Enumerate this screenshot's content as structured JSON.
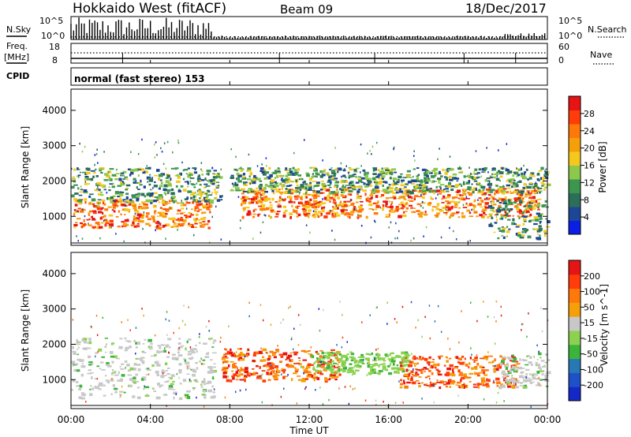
{
  "header": {
    "title": "Hokkaido West (fitACF)",
    "beam": "Beam 09",
    "date": "18/Dec/2017"
  },
  "top_panels": {
    "nsky_label": "N.Sky",
    "nsky_ticks": [
      "10^5",
      "10^0"
    ],
    "nsearch_label": "N.Search",
    "nsearch_ticks": [
      "10^5",
      "10^0"
    ],
    "freq_label": "Freq.",
    "freq_unit": "[MHz]",
    "freq_ticks": [
      "18",
      "8"
    ],
    "nave_label": "Nave",
    "nave_ticks": [
      "60",
      "0"
    ],
    "cpid_label": "CPID",
    "cpid_text": "normal (fast stereo) 153"
  },
  "time_axis": {
    "label": "Time UT",
    "ticks": [
      "00:00",
      "04:00",
      "08:00",
      "12:00",
      "16:00",
      "20:00",
      "00:00"
    ]
  },
  "chart_data": [
    {
      "type": "heatmap",
      "name": "power",
      "ylabel": "Slant Range [km]",
      "xlim_hours": [
        0,
        24
      ],
      "ylim": [
        180,
        4600
      ],
      "yticks": [
        "1000",
        "2000",
        "3000",
        "4000"
      ],
      "colorbar": {
        "label": "Power [dB]",
        "ticks": [
          "4",
          "8",
          "12",
          "16",
          "20",
          "24",
          "28"
        ],
        "colors": [
          "#0a1ee6",
          "#1e4696",
          "#2d6e5a",
          "#3c9650",
          "#8cc84b",
          "#f5c81e",
          "#f5a00a",
          "#ff780a",
          "#ff3c0a",
          "#e61414"
        ]
      },
      "regions": [
        {
          "t": [
            0.1,
            7.0
          ],
          "r": [
            700,
            1500
          ],
          "level": "high"
        },
        {
          "t": [
            0.0,
            7.5
          ],
          "r": [
            1400,
            2400
          ],
          "level": "mid"
        },
        {
          "t": [
            8.5,
            23.5
          ],
          "r": [
            1000,
            1800
          ],
          "level": "high"
        },
        {
          "t": [
            8.0,
            24.0
          ],
          "r": [
            1700,
            2400
          ],
          "level": "mid"
        },
        {
          "t": [
            21.0,
            24.0
          ],
          "r": [
            400,
            1500
          ],
          "level": "mid"
        }
      ]
    },
    {
      "type": "heatmap",
      "name": "velocity",
      "ylabel": "Slant Range [km]",
      "xlim_hours": [
        0,
        24
      ],
      "ylim": [
        180,
        4600
      ],
      "yticks": [
        "1000",
        "2000",
        "3000",
        "4000"
      ],
      "colorbar": {
        "label": "Velocity [m s^-1]",
        "ticks": [
          "200",
          "100",
          "50",
          "15",
          "-15",
          "-50",
          "-100",
          "-200"
        ],
        "colors": [
          "#1428c8",
          "#1e50c8",
          "#2878b4",
          "#3cb43c",
          "#8cd250",
          "#c8c8c8",
          "#f5a00a",
          "#ff780a",
          "#ff3c0a",
          "#e61414"
        ]
      },
      "regions": [
        {
          "t": [
            0.0,
            7.2
          ],
          "r": [
            500,
            2200
          ],
          "level": "grey"
        },
        {
          "t": [
            7.5,
            13.5
          ],
          "r": [
            1000,
            1900
          ],
          "level": "orange"
        },
        {
          "t": [
            12.0,
            17.0
          ],
          "r": [
            1200,
            1800
          ],
          "level": "green"
        },
        {
          "t": [
            16.5,
            22.5
          ],
          "r": [
            800,
            1700
          ],
          "level": "orange"
        },
        {
          "t": [
            21.5,
            24.0
          ],
          "r": [
            800,
            1800
          ],
          "level": "grey"
        }
      ]
    }
  ]
}
